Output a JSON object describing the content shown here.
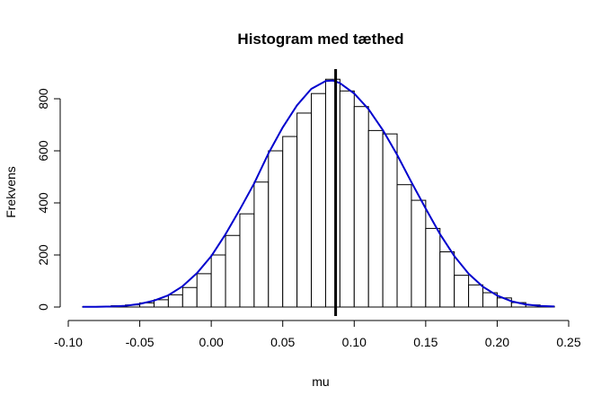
{
  "chart_data": {
    "type": "bar",
    "title": "Histogram med tæthed",
    "xlabel": "mu",
    "ylabel": "Frekvens",
    "xlim": [
      -0.1,
      0.25
    ],
    "ylim": [
      0,
      900
    ],
    "x_ticks": [
      "-0.10",
      "-0.05",
      "0.00",
      "0.05",
      "0.10",
      "0.15",
      "0.20",
      "0.25"
    ],
    "y_ticks": [
      "0",
      "200",
      "400",
      "600",
      "800"
    ],
    "grid": false,
    "legend": "none",
    "bin_width": 0.01,
    "bins_start": [
      -0.09,
      -0.08,
      -0.07,
      -0.06,
      -0.05,
      -0.04,
      -0.03,
      -0.02,
      -0.01,
      0.0,
      0.01,
      0.02,
      0.03,
      0.04,
      0.05,
      0.06,
      0.07,
      0.08,
      0.09,
      0.1,
      0.11,
      0.12,
      0.13,
      0.14,
      0.15,
      0.16,
      0.17,
      0.18,
      0.19,
      0.2,
      0.21,
      0.22,
      0.23
    ],
    "counts": [
      1,
      2,
      5,
      8,
      16,
      28,
      47,
      75,
      128,
      200,
      275,
      358,
      480,
      600,
      655,
      745,
      820,
      875,
      830,
      770,
      678,
      665,
      470,
      410,
      302,
      212,
      122,
      85,
      55,
      35,
      17,
      8,
      3
    ],
    "density_curve": {
      "color": "#0000cd",
      "x": [
        -0.09,
        -0.08,
        -0.07,
        -0.06,
        -0.05,
        -0.04,
        -0.03,
        -0.02,
        -0.01,
        0.0,
        0.01,
        0.02,
        0.03,
        0.04,
        0.05,
        0.06,
        0.07,
        0.08,
        0.085,
        0.09,
        0.1,
        0.11,
        0.12,
        0.13,
        0.14,
        0.15,
        0.16,
        0.17,
        0.18,
        0.19,
        0.2,
        0.21,
        0.22,
        0.23,
        0.24
      ],
      "y": [
        1,
        1,
        2,
        5,
        12,
        25,
        45,
        80,
        130,
        195,
        280,
        375,
        475,
        590,
        690,
        775,
        838,
        868,
        870,
        860,
        820,
        760,
        680,
        585,
        480,
        378,
        280,
        196,
        128,
        78,
        44,
        22,
        10,
        4,
        2
      ]
    },
    "vertical_line": {
      "x": 0.087,
      "color": "#000000"
    }
  }
}
